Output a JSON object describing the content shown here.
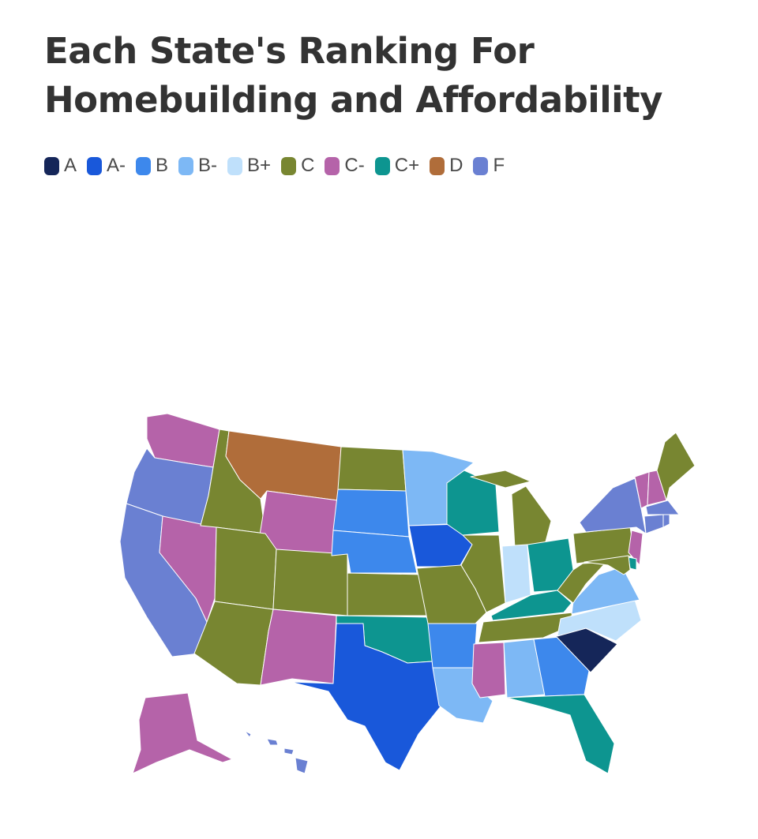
{
  "title": "Each State's Ranking For Homebuilding and Affordability",
  "legend": [
    {
      "grade": "A",
      "color": "#152659"
    },
    {
      "grade": "A-",
      "color": "#1958da"
    },
    {
      "grade": "B",
      "color": "#3d88ec"
    },
    {
      "grade": "B-",
      "color": "#7db8f5"
    },
    {
      "grade": "B+",
      "color": "#bfe0fb"
    },
    {
      "grade": "C",
      "color": "#788631"
    },
    {
      "grade": "C-",
      "color": "#b563a9"
    },
    {
      "grade": "C+",
      "color": "#0d9590"
    },
    {
      "grade": "D",
      "color": "#b06d3a"
    },
    {
      "grade": "F",
      "color": "#6a80d2"
    }
  ],
  "states": {
    "WA": "C-",
    "OR": "F",
    "CA": "F",
    "NV": "C-",
    "ID": "C",
    "MT": "D",
    "WY": "C-",
    "UT": "C",
    "AZ": "C",
    "CO": "C",
    "NM": "C-",
    "ND": "C",
    "SD": "B",
    "NE": "B",
    "KS": "C",
    "OK": "C+",
    "TX": "A-",
    "MN": "B-",
    "IA": "A-",
    "MO": "C",
    "AR": "B",
    "LA": "B-",
    "WI": "C+",
    "IL": "C",
    "MI": "C",
    "IN": "B+",
    "OH": "C+",
    "KY": "C+",
    "TN": "C",
    "MS": "C-",
    "AL": "B-",
    "GA": "B",
    "FL": "C+",
    "SC": "A",
    "NC": "B+",
    "VA": "B-",
    "WV": "C",
    "PA": "C",
    "NY": "F",
    "VT": "C-",
    "NH": "C-",
    "ME": "C",
    "MA": "F",
    "CT": "F",
    "RI": "F",
    "NJ": "C-",
    "DE": "C+",
    "MD": "C",
    "AK": "C-",
    "HI": "F"
  }
}
